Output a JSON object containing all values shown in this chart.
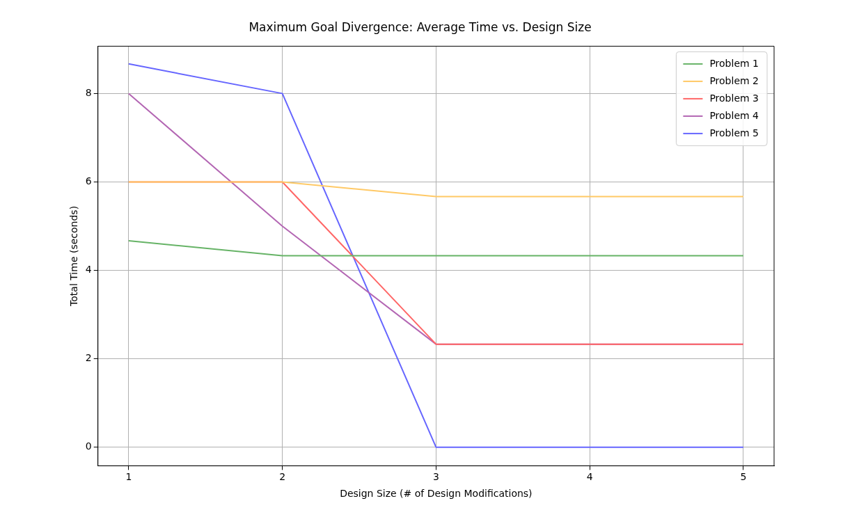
{
  "chart_data": {
    "type": "line",
    "title": "Maximum Goal Divergence: Average Time vs. Design Size",
    "xlabel": "Design Size (# of Design Modifications)",
    "ylabel": "Total Time (seconds)",
    "x": [
      1,
      2,
      3,
      4,
      5
    ],
    "series": [
      {
        "name": "Problem 1",
        "color": "#66b366",
        "values": [
          4.67,
          4.33,
          4.33,
          4.33,
          4.33
        ]
      },
      {
        "name": "Problem 2",
        "color": "#ffc966",
        "values": [
          6,
          6,
          5.67,
          5.67,
          5.67
        ]
      },
      {
        "name": "Problem 3",
        "color": "#ff6666",
        "values": [
          6,
          6,
          2.33,
          2.33,
          2.33
        ]
      },
      {
        "name": "Problem 4",
        "color": "#b366b3",
        "values": [
          8,
          5,
          2.33,
          2.33,
          2.33
        ]
      },
      {
        "name": "Problem 5",
        "color": "#6666ff",
        "values": [
          8.67,
          8,
          0,
          0,
          0
        ]
      }
    ],
    "xlim": [
      0.8,
      5.2
    ],
    "xticks": [
      1,
      2,
      3,
      4,
      5
    ],
    "ylim": [
      -0.42,
      9.07
    ],
    "yticks": [
      0,
      2,
      4,
      6,
      8
    ],
    "grid": true,
    "legend": "top right",
    "marker": "none",
    "line_style": "solid"
  }
}
